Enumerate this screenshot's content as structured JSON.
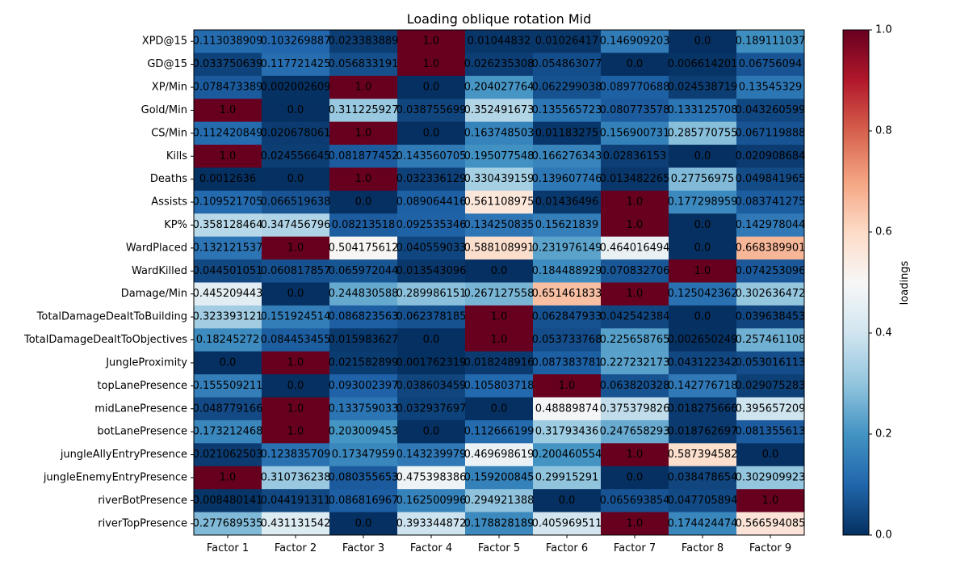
{
  "chart_data": {
    "type": "heatmap",
    "title": "Loading oblique rotation Mid",
    "xlabel": "",
    "ylabel": "",
    "colorbar_label": "loadings",
    "colormap": "RdBu_r",
    "vmin": 0.0,
    "vmax": 1.0,
    "colorbar_ticks": [
      "0.0",
      "0.2",
      "0.4",
      "0.6",
      "0.8",
      "1.0"
    ],
    "columns": [
      "Factor 1",
      "Factor 2",
      "Factor 3",
      "Factor 4",
      "Factor 5",
      "Factor 6",
      "Factor 7",
      "Factor 8",
      "Factor 9"
    ],
    "rows": [
      "XPD@15",
      "GD@15",
      "XP/Min",
      "Gold/Min",
      "CS/Min",
      "Kills",
      "Deaths",
      "Assists",
      "KP%",
      "WardPlaced",
      "WardKilled",
      "Damage/Min",
      "TotalDamageDealtToBuilding",
      "TotalDamageDealtToObjectives",
      "JungleProximity",
      "topLanePresence",
      "midLanePresence",
      "botLanePresence",
      "jungleAllyEntryPresence",
      "jungleEnemyEntryPresence",
      "riverBotPresence",
      "riverTopPresence"
    ],
    "values": [
      [
        0.113038909,
        0.103269887,
        0.023383889,
        1.0,
        0.01044832,
        0.01026417,
        0.146909203,
        0.0,
        0.189111037
      ],
      [
        0.033750639,
        0.117721425,
        0.056833191,
        1.0,
        0.026235308,
        0.054863077,
        0.0,
        0.006614201,
        0.06756094
      ],
      [
        0.078473389,
        0.002002609,
        1.0,
        0.0,
        0.204027764,
        0.062299038,
        0.089770688,
        0.024538719,
        0.13545329
      ],
      [
        1.0,
        0.0,
        0.311225927,
        0.038755699,
        0.352491673,
        0.135565723,
        0.080773578,
        0.133125708,
        0.043260599
      ],
      [
        0.112420849,
        0.020678061,
        1.0,
        0.0,
        0.163748503,
        0.01183275,
        0.156900731,
        0.285770755,
        0.067119888
      ],
      [
        1.0,
        0.024556645,
        0.081877452,
        0.143560705,
        0.195077548,
        0.166276343,
        0.02836153,
        0.0,
        0.020908684
      ],
      [
        0.0012636,
        0.0,
        1.0,
        0.032336129,
        0.330439159,
        0.139607746,
        0.013482265,
        0.27756975,
        0.049841965
      ],
      [
        0.109521705,
        0.066519638,
        0.0,
        0.089064416,
        0.561108975,
        0.01436496,
        1.0,
        0.177298959,
        0.083741275
      ],
      [
        0.358128464,
        0.347456796,
        0.08213518,
        0.092535346,
        0.134250835,
        0.15621839,
        1.0,
        0.0,
        0.142978044
      ],
      [
        0.132121537,
        1.0,
        0.504175612,
        0.040559033,
        0.588108991,
        0.231976149,
        0.464016494,
        0.0,
        0.668389901
      ],
      [
        0.044501051,
        0.060817857,
        0.065972044,
        0.013543096,
        0.0,
        0.184488929,
        0.070832706,
        1.0,
        0.074253096
      ],
      [
        0.445209443,
        0.0,
        0.244830588,
        0.289986151,
        0.267127558,
        0.651461833,
        1.0,
        0.125042362,
        0.302636472
      ],
      [
        0.323393121,
        0.151924514,
        0.086823563,
        0.062378185,
        1.0,
        0.062847933,
        0.042542384,
        0.0,
        0.039638453
      ],
      [
        0.18245272,
        0.084453455,
        0.015983627,
        0.0,
        1.0,
        0.053733768,
        0.225658765,
        0.002650249,
        0.257461108
      ],
      [
        0.0,
        1.0,
        0.021582899,
        0.001762319,
        0.018248916,
        0.087383781,
        0.227232173,
        0.043122342,
        0.053016113
      ],
      [
        0.155509211,
        0.0,
        0.093002397,
        0.038603459,
        0.105803718,
        1.0,
        0.063820328,
        0.142776718,
        0.029075283
      ],
      [
        0.048779166,
        1.0,
        0.133759033,
        0.032937697,
        0.0,
        0.48889874,
        0.375379826,
        0.018275666,
        0.395657209
      ],
      [
        0.173212468,
        1.0,
        0.203009453,
        0.0,
        0.112666199,
        0.31793436,
        0.247658293,
        0.018762697,
        0.081355613
      ],
      [
        0.021062503,
        0.123835709,
        0.17347959,
        0.143239979,
        0.469698619,
        0.200460554,
        1.0,
        0.587394582,
        0.0
      ],
      [
        1.0,
        0.310736238,
        0.080355653,
        0.475398386,
        0.159200845,
        0.29915291,
        0.0,
        0.038478654,
        0.302909923
      ],
      [
        0.008480141,
        0.044191311,
        0.086816967,
        0.162500996,
        0.294921388,
        0.0,
        0.065693854,
        0.047705894,
        1.0
      ],
      [
        0.277689535,
        0.431131542,
        0.0,
        0.393344872,
        0.178828189,
        0.405969511,
        1.0,
        0.174424474,
        0.566594085
      ]
    ],
    "cell_labels": [
      [
        "0.113038909",
        "0.103269887",
        "0.023383889",
        "1.0",
        "0.01044832",
        "0.01026417",
        "0.146909203",
        "0.0",
        "0.189111037"
      ],
      [
        "0.033750639",
        "0.117721425",
        "0.056833191",
        "1.0",
        "0.026235308",
        "0.054863077",
        "0.0",
        "0.006614201",
        "0.06756094"
      ],
      [
        "0.078473389",
        "0.002002609",
        "1.0",
        "0.0",
        "0.204027764",
        "0.062299038",
        "0.089770688",
        "0.024538719",
        "0.13545329"
      ],
      [
        "1.0",
        "0.0",
        "0.311225927",
        "0.038755699",
        "0.352491673",
        "0.135565723",
        "0.080773578",
        "0.133125708",
        "0.043260599"
      ],
      [
        "0.112420849",
        "0.020678061",
        "1.0",
        "0.0",
        "0.163748503",
        "0.01183275",
        "0.156900731",
        "0.285770755",
        "0.067119888"
      ],
      [
        "1.0",
        "0.024556645",
        "0.081877452",
        "0.143560705",
        "0.195077548",
        "0.166276343",
        "0.02836153",
        "0.0",
        "0.020908684"
      ],
      [
        "0.0012636",
        "0.0",
        "1.0",
        "0.032336129",
        "0.330439159",
        "0.139607746",
        "0.013482265",
        "0.27756975",
        "0.049841965"
      ],
      [
        "0.109521705",
        "0.066519638",
        "0.0",
        "0.089064416",
        "0.561108975",
        "0.01436496",
        "1.0",
        "0.177298959",
        "0.083741275"
      ],
      [
        "0.358128464",
        "0.347456796",
        "0.08213518",
        "0.092535346",
        "0.134250835",
        "0.15621839",
        "1.0",
        "0.0",
        "0.142978044"
      ],
      [
        "0.132121537",
        "1.0",
        "0.504175612",
        "0.040559033",
        "0.588108991",
        "0.231976149",
        "0.464016494",
        "0.0",
        "0.668389901"
      ],
      [
        "0.044501051",
        "0.060817857",
        "0.065972044",
        "0.013543096",
        "0.0",
        "0.184488929",
        "0.070832706",
        "1.0",
        "0.074253096"
      ],
      [
        "0.445209443",
        "0.0",
        "0.244830588",
        "0.289986151",
        "0.267127558",
        "0.651461833",
        "1.0",
        "0.125042362",
        "0.302636472"
      ],
      [
        "0.323393121",
        "0.151924514",
        "0.086823563",
        "0.062378185",
        "1.0",
        "0.062847933",
        "0.042542384",
        "0.0",
        "0.039638453"
      ],
      [
        "0.18245272",
        "0.084453455",
        "0.015983627",
        "0.0",
        "1.0",
        "0.053733768",
        "0.225658765",
        "0.002650249",
        "0.257461108"
      ],
      [
        "0.0",
        "1.0",
        "0.021582899",
        "0.001762319",
        "0.018248916",
        "0.087383781",
        "0.227232173",
        "0.043122342",
        "0.053016113"
      ],
      [
        "0.155509211",
        "0.0",
        "0.093002397",
        "0.038603459",
        "0.105803718",
        "1.0",
        "0.063820328",
        "0.142776718",
        "0.029075283"
      ],
      [
        "0.048779166",
        "1.0",
        "0.133759033",
        "0.032937697",
        "0.0",
        "0.48889874",
        "0.375379826",
        "0.018275666",
        "0.395657209"
      ],
      [
        "0.173212468",
        "1.0",
        "0.203009453",
        "0.0",
        "0.112666199",
        "0.31793436",
        "0.247658293",
        "0.018762697",
        "0.081355613"
      ],
      [
        "0.021062503",
        "0.123835709",
        "0.17347959",
        "0.143239979",
        "0.469698619",
        "0.200460554",
        "1.0",
        "0.587394582",
        "0.0"
      ],
      [
        "1.0",
        "0.310736238",
        "0.080355653",
        "0.475398386",
        "0.159200845",
        "0.29915291",
        "0.0",
        "0.038478654",
        "0.302909923"
      ],
      [
        "0.008480141",
        "0.044191311",
        "0.086816967",
        "0.162500996",
        "0.294921388",
        "0.0",
        "0.065693854",
        "0.047705894",
        "1.0"
      ],
      [
        "0.277689535",
        "0.431131542",
        "0.0",
        "0.393344872",
        "0.178828189",
        "0.405969511",
        "1.0",
        "0.174424474",
        "0.566594085"
      ]
    ]
  }
}
